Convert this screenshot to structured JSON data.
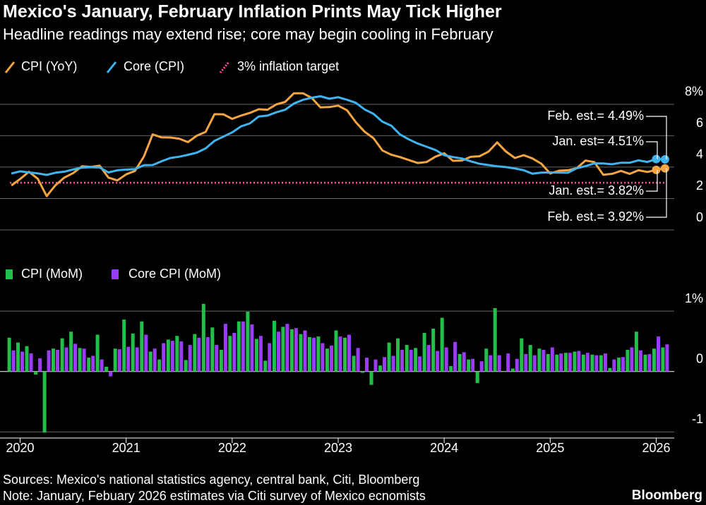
{
  "title": "Mexico's January, February Inflation Prints May Tick Higher",
  "subtitle": "Headline readings may extend rise; core may begin cooling in February",
  "sources": "Sources: Mexico's national statistics agency, central bank, Citi, Bloomberg",
  "note": "Note: January, Febuary 2026 estimates via Citi survey of Mexico ecnomists",
  "brand": "Bloomberg",
  "chart_data": [
    {
      "type": "line",
      "x": [
        2019.917,
        2020.0,
        2020.083,
        2020.167,
        2020.25,
        2020.333,
        2020.417,
        2020.5,
        2020.583,
        2020.667,
        2020.75,
        2020.833,
        2020.917,
        2021.0,
        2021.083,
        2021.167,
        2021.25,
        2021.333,
        2021.417,
        2021.5,
        2021.583,
        2021.667,
        2021.75,
        2021.833,
        2021.917,
        2022.0,
        2022.083,
        2022.167,
        2022.25,
        2022.333,
        2022.417,
        2022.5,
        2022.583,
        2022.667,
        2022.75,
        2022.833,
        2022.917,
        2023.0,
        2023.083,
        2023.167,
        2023.25,
        2023.333,
        2023.417,
        2023.5,
        2023.583,
        2023.667,
        2023.75,
        2023.833,
        2023.917,
        2024.0,
        2024.083,
        2024.167,
        2024.25,
        2024.333,
        2024.417,
        2024.5,
        2024.583,
        2024.667,
        2024.75,
        2024.833,
        2024.917,
        2025.0,
        2025.083,
        2025.167,
        2025.25,
        2025.333,
        2025.417,
        2025.5,
        2025.583,
        2025.667,
        2025.75,
        2025.833,
        2025.917,
        2026.0,
        2026.083
      ],
      "series": [
        {
          "name": "CPI (YoY)",
          "color": "#f5a442",
          "values": [
            2.83,
            3.24,
            3.7,
            3.25,
            2.15,
            2.84,
            3.33,
            3.62,
            4.05,
            4.01,
            4.09,
            3.33,
            3.15,
            3.54,
            3.76,
            4.67,
            6.08,
            5.89,
            5.88,
            5.81,
            5.59,
            6.0,
            6.24,
            7.37,
            7.36,
            7.07,
            7.28,
            7.45,
            7.68,
            7.65,
            7.99,
            8.15,
            8.7,
            8.7,
            8.41,
            7.8,
            7.82,
            7.91,
            7.62,
            6.85,
            6.25,
            5.84,
            5.06,
            4.79,
            4.64,
            4.45,
            4.26,
            4.32,
            4.66,
            4.88,
            4.4,
            4.42,
            4.65,
            4.69,
            4.98,
            5.57,
            4.99,
            4.58,
            4.76,
            4.55,
            4.21,
            3.59,
            3.77,
            3.8,
            3.93,
            4.42,
            4.32,
            3.51,
            3.57,
            3.76,
            3.57,
            3.8,
            3.69,
            3.82,
            3.92
          ]
        },
        {
          "name": "Core (CPI)",
          "color": "#3fb4f0",
          "values": [
            3.59,
            3.73,
            3.66,
            3.6,
            3.5,
            3.64,
            3.71,
            3.85,
            3.97,
            3.99,
            3.98,
            3.66,
            3.8,
            3.84,
            3.87,
            4.12,
            4.13,
            4.37,
            4.58,
            4.66,
            4.78,
            4.92,
            5.19,
            5.67,
            5.94,
            6.21,
            6.59,
            6.78,
            7.22,
            7.28,
            7.49,
            7.65,
            8.05,
            8.28,
            8.42,
            8.51,
            8.35,
            8.45,
            8.29,
            8.09,
            7.67,
            7.39,
            6.89,
            6.64,
            6.08,
            5.76,
            5.5,
            5.3,
            5.09,
            4.76,
            4.64,
            4.55,
            4.37,
            4.21,
            4.13,
            4.05,
            4.0,
            3.91,
            3.8,
            3.58,
            3.65,
            3.66,
            3.65,
            3.64,
            3.93,
            4.06,
            4.24,
            4.23,
            4.18,
            4.28,
            4.28,
            4.43,
            4.33,
            4.51,
            4.49
          ]
        }
      ],
      "reference_line": {
        "name": "3% inflation target",
        "value": 3,
        "color": "#ff4fa8"
      },
      "annotations": [
        "Feb. est.= 4.49%",
        "Jan. est= 4.51%",
        "Jan. est.= 3.82%",
        "Feb. est.= 3.92%"
      ],
      "xlim": [
        2019.81,
        2026.17
      ],
      "ylim": [
        0,
        8.8
      ],
      "yticks": [
        0,
        2,
        4,
        6,
        {
          "value": 8,
          "label": "8%"
        }
      ],
      "grid": true
    },
    {
      "type": "bar",
      "x": [
        2019.917,
        2020.0,
        2020.083,
        2020.167,
        2020.25,
        2020.333,
        2020.417,
        2020.5,
        2020.583,
        2020.667,
        2020.75,
        2020.833,
        2020.917,
        2021.0,
        2021.083,
        2021.167,
        2021.25,
        2021.333,
        2021.417,
        2021.5,
        2021.583,
        2021.667,
        2021.75,
        2021.833,
        2021.917,
        2022.0,
        2022.083,
        2022.167,
        2022.25,
        2022.333,
        2022.417,
        2022.5,
        2022.583,
        2022.667,
        2022.75,
        2022.833,
        2022.917,
        2023.0,
        2023.083,
        2023.167,
        2023.25,
        2023.333,
        2023.417,
        2023.5,
        2023.583,
        2023.667,
        2023.75,
        2023.833,
        2023.917,
        2024.0,
        2024.083,
        2024.167,
        2024.25,
        2024.333,
        2024.417,
        2024.5,
        2024.583,
        2024.667,
        2024.75,
        2024.833,
        2024.917,
        2025.0,
        2025.083,
        2025.167,
        2025.25,
        2025.333,
        2025.417,
        2025.5,
        2025.583,
        2025.667,
        2025.75,
        2025.833,
        2025.917,
        2026.0,
        2026.083
      ],
      "series": [
        {
          "name": "CPI (MoM)",
          "color": "#22c04a",
          "values": [
            0.56,
            0.48,
            0.42,
            -0.05,
            -1.01,
            0.38,
            0.55,
            0.66,
            0.39,
            0.23,
            0.61,
            0.08,
            0.38,
            0.86,
            0.63,
            0.83,
            0.33,
            0.2,
            0.53,
            0.59,
            0.19,
            0.62,
            1.12,
            0.73,
            0.36,
            0.59,
            0.83,
            0.99,
            0.54,
            0.18,
            0.84,
            0.74,
            0.7,
            0.62,
            0.57,
            0.58,
            0.38,
            0.68,
            0.56,
            0.26,
            -0.02,
            -0.22,
            0.1,
            0.48,
            0.55,
            0.44,
            0.39,
            0.64,
            0.71,
            0.89,
            0.09,
            0.29,
            0.2,
            -0.19,
            0.38,
            1.05,
            0.01,
            0.05,
            0.55,
            0.44,
            0.38,
            0.29,
            0.28,
            0.31,
            0.33,
            0.28,
            0.28,
            0.27,
            0.06,
            0.23,
            0.36,
            0.66,
            0.28,
            0.38,
            0.4
          ]
        },
        {
          "name": "Core CPI (MoM)",
          "color": "#9a3cf5",
          "values": [
            0.35,
            0.33,
            0.3,
            0.22,
            0.35,
            0.36,
            0.4,
            0.46,
            0.38,
            0.26,
            0.2,
            -0.08,
            0.37,
            0.41,
            0.4,
            0.61,
            0.38,
            0.47,
            0.51,
            0.5,
            0.44,
            0.56,
            0.57,
            0.44,
            0.79,
            0.64,
            0.83,
            0.78,
            0.59,
            0.47,
            0.66,
            0.79,
            0.72,
            0.68,
            0.56,
            0.47,
            0.43,
            0.58,
            0.61,
            0.39,
            0.23,
            0.2,
            0.24,
            0.26,
            0.36,
            0.36,
            0.25,
            0.44,
            0.34,
            0.4,
            0.49,
            0.32,
            0.21,
            0.17,
            0.27,
            0.27,
            0.3,
            0.21,
            0.29,
            0.27,
            0.36,
            0.4,
            0.3,
            0.31,
            0.34,
            0.31,
            0.27,
            0.3,
            0.2,
            0.24,
            0.4,
            0.35,
            0.29,
            0.58,
            0.45
          ]
        }
      ],
      "xlim": [
        2019.81,
        2026.17
      ],
      "xticks": [
        2020,
        2021,
        2022,
        2023,
        2024,
        2025,
        2026
      ],
      "ylim": [
        -1.1,
        1.2
      ],
      "yticks": [
        -1,
        0,
        {
          "value": 1,
          "label": "1%"
        }
      ],
      "grid": true
    }
  ]
}
